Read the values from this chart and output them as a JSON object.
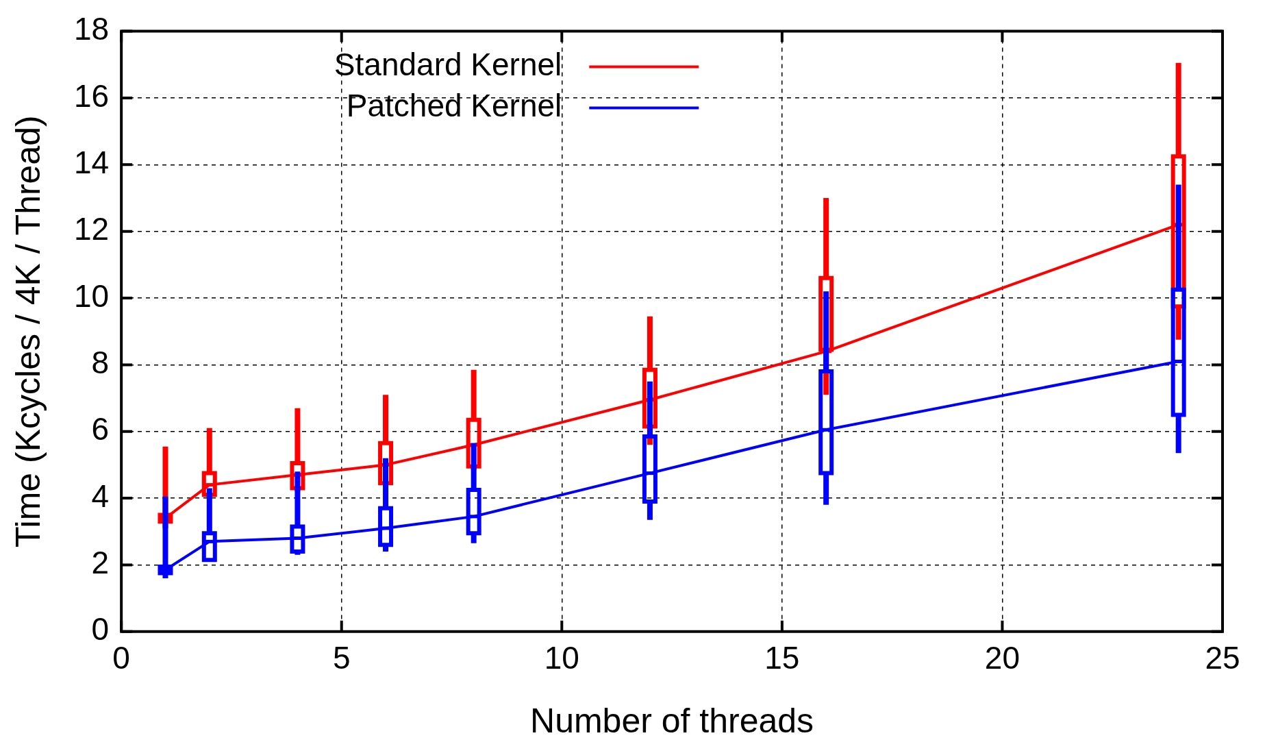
{
  "chart_data": {
    "type": "line",
    "xlabel": "Number of threads",
    "ylabel": "Time (Kcycles / 4K / Thread)",
    "xlim": [
      0,
      25
    ],
    "xticks": [
      0,
      5,
      10,
      15,
      20,
      25
    ],
    "ylim": [
      0,
      18
    ],
    "yticks": [
      0,
      2,
      4,
      6,
      8,
      10,
      12,
      14,
      16,
      18
    ],
    "grid": true,
    "legend": "top",
    "series": [
      {
        "type": "box",
        "color": "#ff0000",
        "x": [
          1,
          2,
          4,
          6,
          8,
          12,
          16,
          24
        ],
        "boxes": [
          {
            "low": 3.1,
            "q1": 3.3,
            "median": 3.4,
            "q3": 3.5,
            "high": 5.55
          },
          {
            "low": 4.0,
            "q1": 4.1,
            "median": 4.4,
            "q3": 4.75,
            "high": 6.1
          },
          {
            "low": 4.2,
            "q1": 4.3,
            "median": 4.7,
            "q3": 5.05,
            "high": 6.7
          },
          {
            "low": 4.35,
            "q1": 4.45,
            "median": 5.0,
            "q3": 5.65,
            "high": 7.1
          },
          {
            "low": 4.85,
            "q1": 4.95,
            "median": 5.6,
            "q3": 6.35,
            "high": 7.85
          },
          {
            "low": 5.6,
            "q1": 6.15,
            "median": 6.95,
            "q3": 7.85,
            "high": 9.45
          },
          {
            "low": 7.1,
            "q1": 8.45,
            "median": 8.4,
            "q3": 10.6,
            "high": 13.0
          },
          {
            "low": 8.75,
            "q1": 9.75,
            "median": 12.2,
            "q3": 14.25,
            "high": 17.05
          }
        ]
      },
      {
        "type": "box",
        "color": "#0000ff",
        "x": [
          1,
          2,
          4,
          6,
          8,
          12,
          16,
          24
        ],
        "boxes": [
          {
            "low": 1.6,
            "q1": 1.75,
            "median": 1.85,
            "q3": 1.95,
            "high": 4.05
          },
          {
            "low": 2.1,
            "q1": 2.15,
            "median": 2.7,
            "q3": 2.95,
            "high": 4.3
          },
          {
            "low": 2.3,
            "q1": 2.4,
            "median": 2.8,
            "q3": 3.15,
            "high": 4.8
          },
          {
            "low": 2.4,
            "q1": 2.6,
            "median": 3.1,
            "q3": 3.7,
            "high": 5.2
          },
          {
            "low": 2.65,
            "q1": 2.95,
            "median": 3.45,
            "q3": 4.25,
            "high": 5.65
          },
          {
            "low": 3.35,
            "q1": 3.9,
            "median": 4.75,
            "q3": 5.85,
            "high": 7.5
          },
          {
            "low": 3.8,
            "q1": 4.75,
            "median": 6.05,
            "q3": 7.8,
            "high": 10.2
          },
          {
            "low": 5.35,
            "q1": 6.5,
            "median": 8.1,
            "q3": 10.25,
            "high": 13.4
          }
        ]
      },
      {
        "name": "Standard Kernel",
        "color": "#ff0000",
        "x": [
          1,
          2,
          4,
          6,
          8,
          12,
          16,
          24
        ],
        "values": [
          3.4,
          4.4,
          4.7,
          5.0,
          5.6,
          6.95,
          8.4,
          12.2
        ]
      },
      {
        "name": "Patched Kernel",
        "color": "#0000ff",
        "x": [
          1,
          2,
          4,
          6,
          8,
          12,
          16,
          24
        ],
        "values": [
          1.85,
          2.7,
          2.8,
          3.1,
          3.45,
          4.75,
          6.05,
          8.1
        ]
      }
    ]
  }
}
